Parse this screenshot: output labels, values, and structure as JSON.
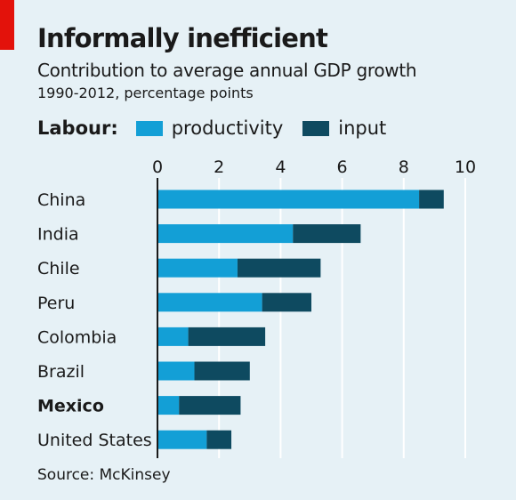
{
  "header": {
    "title": "Informally inefficient",
    "subtitle": "Contribution to average annual GDP growth",
    "subtitle2": "1990-2012, percentage points"
  },
  "legend": {
    "title": "Labour:",
    "items": [
      {
        "label": "productivity",
        "color": "#139fd6"
      },
      {
        "label": "input",
        "color": "#0e4a60"
      }
    ]
  },
  "chart_data": {
    "type": "bar",
    "orientation": "horizontal",
    "stacked": true,
    "categories": [
      "China",
      "India",
      "Chile",
      "Peru",
      "Colombia",
      "Brazil",
      "Mexico",
      "United States"
    ],
    "highlighted_category": "Mexico",
    "series": [
      {
        "name": "productivity",
        "color": "#139fd6",
        "values": [
          8.5,
          4.4,
          2.6,
          3.4,
          1.0,
          1.2,
          0.7,
          1.6
        ]
      },
      {
        "name": "input",
        "color": "#0e4a60",
        "values": [
          0.8,
          2.2,
          2.7,
          1.6,
          2.5,
          1.8,
          2.0,
          0.8
        ]
      }
    ],
    "xticks": [
      0,
      2,
      4,
      6,
      8,
      10
    ],
    "xlim": [
      0,
      10
    ],
    "grid": true,
    "legend_position": "top"
  },
  "footer": {
    "source": "Source: McKinsey"
  }
}
